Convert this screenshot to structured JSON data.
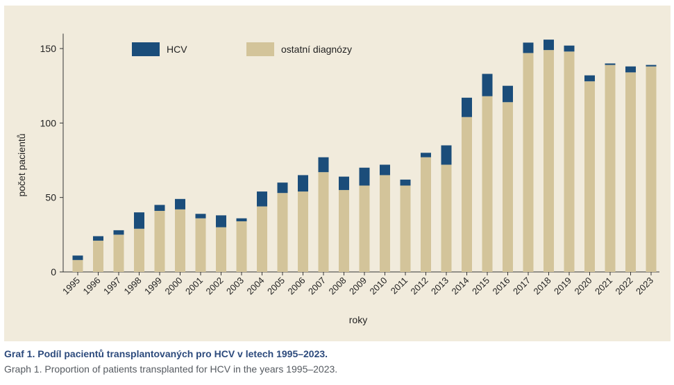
{
  "chart_data": {
    "type": "bar",
    "stacked": true,
    "categories": [
      "1995",
      "1996",
      "1997",
      "1998",
      "1999",
      "2000",
      "2001",
      "2002",
      "2003",
      "2004",
      "2005",
      "2006",
      "2007",
      "2008",
      "2009",
      "2010",
      "2011",
      "2012",
      "2013",
      "2014",
      "2015",
      "2016",
      "2017",
      "2018",
      "2019",
      "2020",
      "2021",
      "2022",
      "2023"
    ],
    "series": [
      {
        "name": "ostatní diagnózy",
        "color": "#d3c49a",
        "values": [
          8,
          21,
          25,
          29,
          41,
          42,
          36,
          30,
          34,
          44,
          53,
          54,
          67,
          55,
          58,
          65,
          58,
          77,
          72,
          104,
          118,
          114,
          147,
          149,
          148,
          128,
          139,
          134,
          138
        ]
      },
      {
        "name": "HCV",
        "color": "#1b4d7a",
        "values": [
          3,
          3,
          3,
          11,
          4,
          7,
          3,
          8,
          2,
          10,
          7,
          11,
          10,
          9,
          12,
          7,
          4,
          3,
          13,
          13,
          15,
          11,
          7,
          7,
          4,
          4,
          1,
          4,
          1
        ]
      }
    ],
    "xlabel": "roky",
    "ylabel": "počet pacientů",
    "ylim": [
      0,
      160
    ],
    "yticks": [
      0,
      50,
      100,
      150
    ],
    "grid": false,
    "legend": {
      "placement": "top-left",
      "entries": [
        "HCV",
        "ostatní diagnózy"
      ]
    }
  },
  "captions": {
    "czech": "Graf 1. Podíl pacientů transplantovaných pro HCV v letech 1995–2023.",
    "english": "Graph 1. Proportion of patients transplanted for HCV in the years 1995–2023."
  }
}
